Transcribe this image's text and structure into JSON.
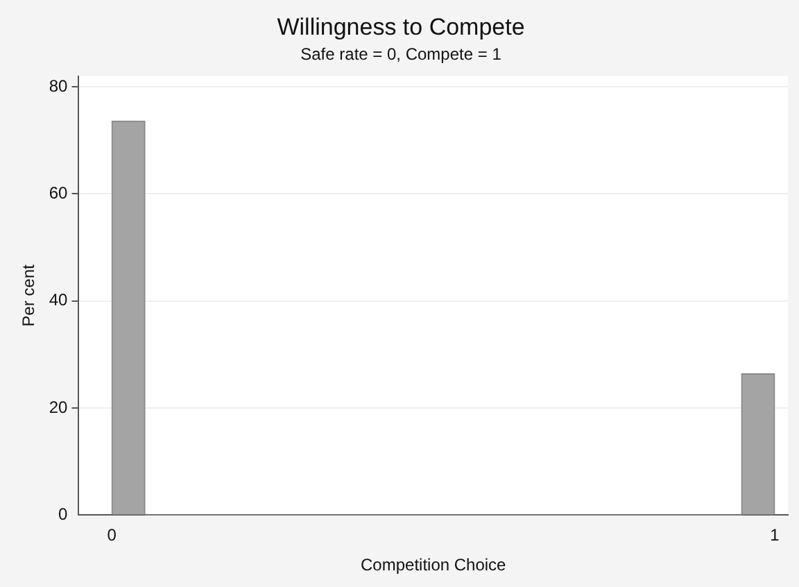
{
  "chart_data": {
    "type": "histogram",
    "title": "Willingness to Compete",
    "subtitle": "Safe rate = 0, Compete = 1",
    "xlabel": "Competition Choice",
    "ylabel": "Per cent",
    "bins": [
      0,
      0.05,
      0.95,
      1
    ],
    "values": [
      73.6,
      0,
      26.4
    ],
    "color": "#a4a4a4",
    "xlim": [
      -0.05,
      1.02
    ],
    "xticks": [
      0,
      1
    ],
    "ylim": [
      0,
      82
    ],
    "yticks": [
      0,
      20,
      40,
      60,
      80
    ],
    "grid": "y",
    "legend": false
  }
}
